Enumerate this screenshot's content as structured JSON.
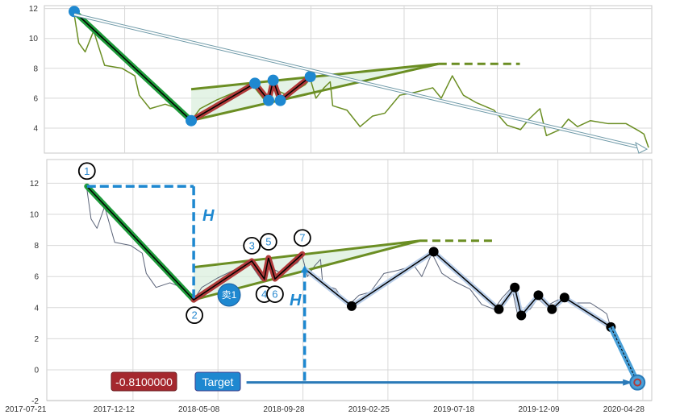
{
  "chart_data": [
    {
      "type": "line",
      "panel": "top",
      "ylim": [
        2.3,
        12.2
      ],
      "yticks": [
        4,
        6,
        8,
        10,
        12
      ],
      "grid": true,
      "colors": {
        "price": "#6b8e23",
        "down_leg": "#1e9a3a",
        "zigzag": "#b03a3a",
        "pivot": "#1e88d0",
        "triangle": "#6b8e23",
        "triangle_fill": "#d9eedc",
        "trend_arrow": "#6f9aa8"
      }
    },
    {
      "type": "line",
      "panel": "bottom",
      "ylim": [
        -2,
        13.5
      ],
      "yticks": [
        -2,
        0,
        2,
        4,
        6,
        8,
        10,
        12
      ],
      "xticks": [
        "2017-07-21",
        "2017-12-12",
        "2018-05-08",
        "2018-09-28",
        "2019-02-25",
        "2019-07-18",
        "2019-12-09",
        "2020-04-28"
      ],
      "grid": true,
      "colors": {
        "price": "#5a6378",
        "down_leg": "#1e9a3a",
        "zigzag": "#b03a3a",
        "measure": "#1e88d0",
        "target_arrow": "#2a7ab8",
        "value_box": "#a5282e",
        "target_box": "#1e88d0"
      },
      "annotations": {
        "height_label_1": "H",
        "height_label_2": "H",
        "sell_marker": "卖1",
        "value_box": "-0.8100000",
        "target_box": "Target"
      }
    }
  ],
  "price_series": {
    "dates": [
      "2017-09-25",
      "2017-10-02",
      "2017-10-12",
      "2017-10-25",
      "2017-11-11",
      "2017-12-08",
      "2017-12-28",
      "2018-01-04",
      "2018-01-21",
      "2018-02-14",
      "2018-03-06",
      "2018-03-27",
      "2018-04-10",
      "2018-05-07",
      "2018-06-03",
      "2018-06-30",
      "2018-07-20",
      "2018-08-03",
      "2018-08-23",
      "2018-09-19",
      "2018-09-27",
      "2018-10-06",
      "2018-10-19",
      "2018-10-29",
      "2018-11-02",
      "2018-11-25",
      "2018-12-16",
      "2019-01-05",
      "2019-01-25",
      "2019-02-18",
      "2019-03-14",
      "2019-04-10",
      "2019-04-23",
      "2019-05-10",
      "2019-05-27",
      "2019-06-16",
      "2019-07-13",
      "2019-08-02",
      "2019-08-23",
      "2019-09-05",
      "2019-09-22",
      "2019-10-02",
      "2019-10-23",
      "2019-11-05",
      "2019-11-19",
      "2019-12-09",
      "2020-01-05",
      "2020-02-01",
      "2020-02-21",
      "2020-02-28",
      "2020-03-06"
    ],
    "values": [
      11.6,
      9.7,
      9.1,
      10.5,
      8.2,
      8.0,
      7.5,
      6.2,
      5.3,
      5.6,
      5.3,
      4.5,
      5.3,
      5.9,
      6.4,
      6.9,
      5.8,
      6.6,
      6.2,
      6.9,
      7.3,
      6.0,
      6.7,
      7.1,
      5.5,
      5.2,
      4.1,
      4.8,
      5.0,
      6.2,
      6.4,
      6.7,
      6.0,
      7.5,
      6.2,
      5.7,
      5.2,
      4.2,
      3.9,
      4.6,
      5.3,
      3.5,
      3.9,
      4.6,
      4.1,
      4.5,
      4.3,
      4.3,
      3.8,
      3.6,
      2.7
    ]
  },
  "pivots": {
    "down_leg": {
      "dates": [
        "2017-09-25",
        "2018-03-27"
      ],
      "values": [
        11.8,
        4.5
      ]
    },
    "zigzag": {
      "labels": [
        "1",
        "2",
        "3",
        "4",
        "5",
        "6",
        "7"
      ],
      "dates": [
        "2017-09-25",
        "2018-03-27",
        "2018-07-04",
        "2018-07-25",
        "2018-08-01",
        "2018-08-12",
        "2018-09-27"
      ],
      "values": [
        11.8,
        4.5,
        7.0,
        5.85,
        7.2,
        5.85,
        7.45
      ]
    },
    "after": {
      "dates": [
        "2018-10-01",
        "2018-12-23",
        "2019-05-13",
        "2019-08-31",
        "2019-09-27",
        "2019-10-08",
        "2019-11-06",
        "2019-11-29",
        "2019-12-20",
        "2020-03-06"
      ],
      "values": [
        6.5,
        4.1,
        7.6,
        3.9,
        5.3,
        3.5,
        4.8,
        3.9,
        4.65,
        2.75
      ]
    },
    "projection": {
      "dates": [
        "2020-03-06",
        "2020-04-19"
      ],
      "values": [
        2.75,
        -0.81
      ]
    }
  },
  "triangle": {
    "start_date": "2018-03-27",
    "apex_date": "2019-04-19",
    "extension_end_date": "2019-08-22",
    "upper_start": 6.6,
    "lower_start": 4.5,
    "apex_value": 8.3
  },
  "target": {
    "value": -0.81,
    "from_date": "2018-06-25",
    "to_date": "2020-04-19",
    "measure_date": "2018-10-01",
    "measure_top": 6.5
  }
}
